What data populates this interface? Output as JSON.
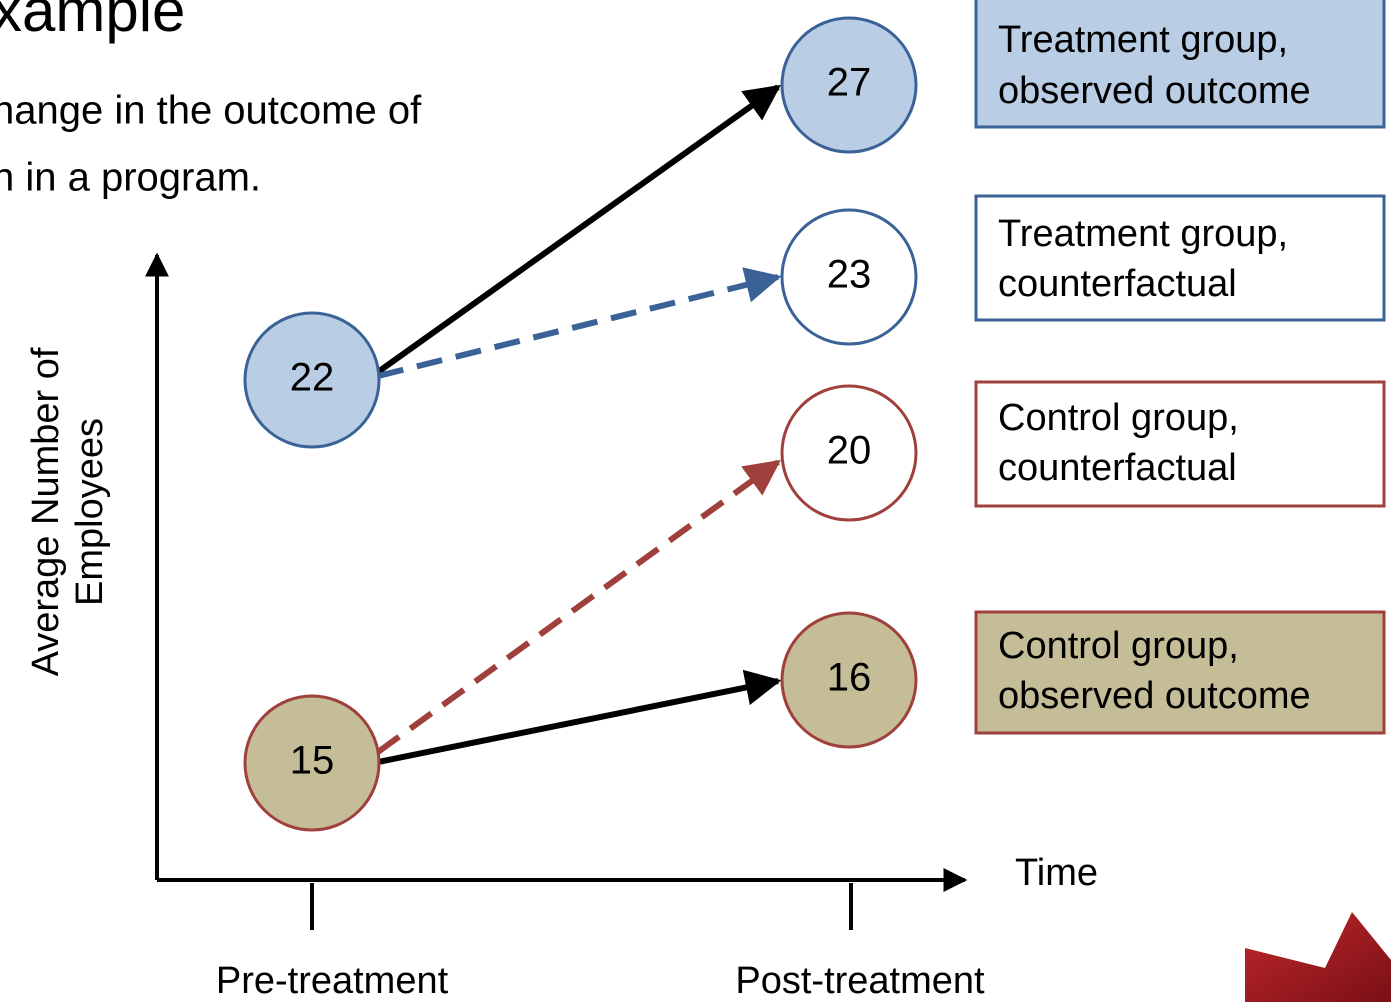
{
  "title": "xample",
  "body_lines": [
    "hange in the outcome of",
    "n in a program."
  ],
  "y_axis_label": [
    "Average Number of",
    "Employees"
  ],
  "x_axis_label": "Time",
  "x_ticks": [
    "Pre-treatment",
    "Post-treatment"
  ],
  "nodes": [
    {
      "label": "22"
    },
    {
      "label": "15"
    },
    {
      "label": "27"
    },
    {
      "label": "23"
    },
    {
      "label": "20"
    },
    {
      "label": "16"
    }
  ],
  "legend": [
    {
      "lines": [
        "Treatment group,",
        "observed outcome"
      ]
    },
    {
      "lines": [
        "Treatment group,",
        "counterfactual"
      ]
    },
    {
      "lines": [
        "Control group,",
        "counterfactual"
      ]
    },
    {
      "lines": [
        "Control group,",
        "observed outcome"
      ]
    }
  ]
}
